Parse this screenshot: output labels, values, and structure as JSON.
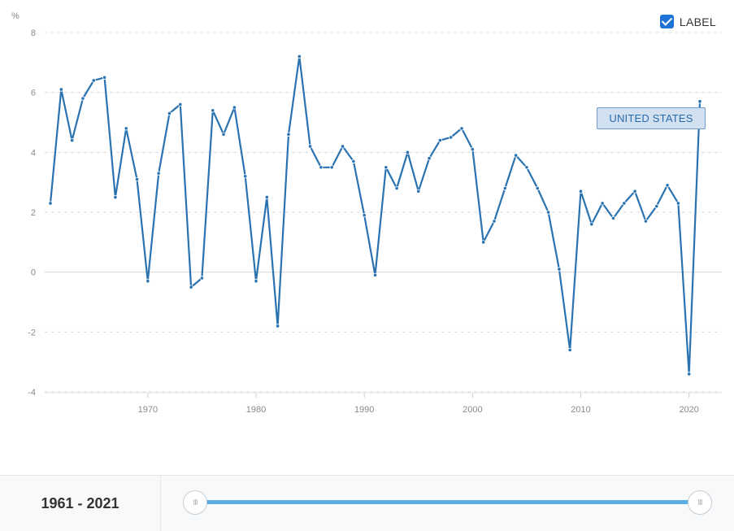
{
  "chart_data": {
    "type": "line",
    "ylabel": "%",
    "ylim": [
      -4,
      8
    ],
    "y_ticks": [
      8,
      6,
      4,
      2,
      0,
      -2,
      -4
    ],
    "x_ticks": [
      1970,
      1980,
      1990,
      2000,
      2010,
      2020
    ],
    "xlim": [
      1961,
      2021
    ],
    "grid": true,
    "legend": "top-right",
    "series": [
      {
        "name": "UNITED STATES",
        "color": "#2a72b0",
        "x": [
          1961,
          1962,
          1963,
          1964,
          1965,
          1966,
          1967,
          1968,
          1969,
          1970,
          1971,
          1972,
          1973,
          1974,
          1975,
          1976,
          1977,
          1978,
          1979,
          1980,
          1981,
          1982,
          1983,
          1984,
          1985,
          1986,
          1987,
          1988,
          1989,
          1990,
          1991,
          1992,
          1993,
          1994,
          1995,
          1996,
          1997,
          1998,
          1999,
          2000,
          2001,
          2002,
          2003,
          2004,
          2005,
          2006,
          2007,
          2008,
          2009,
          2010,
          2011,
          2012,
          2013,
          2014,
          2015,
          2016,
          2017,
          2018,
          2019,
          2020,
          2021
        ],
        "values": [
          2.3,
          6.1,
          4.4,
          5.8,
          6.4,
          6.5,
          2.5,
          4.8,
          3.1,
          -0.3,
          3.3,
          5.3,
          5.6,
          -0.5,
          -0.2,
          5.4,
          4.6,
          5.5,
          3.2,
          -0.3,
          2.5,
          -1.8,
          4.6,
          7.2,
          4.2,
          3.5,
          3.5,
          4.2,
          3.7,
          1.9,
          -0.1,
          3.5,
          2.8,
          4.0,
          2.7,
          3.8,
          4.4,
          4.5,
          4.8,
          4.1,
          1.0,
          1.7,
          2.8,
          3.9,
          3.5,
          2.8,
          2.0,
          0.1,
          -2.6,
          2.7,
          1.6,
          2.3,
          1.8,
          2.3,
          2.7,
          1.7,
          2.2,
          2.9,
          2.3,
          -3.4,
          5.7
        ]
      }
    ]
  },
  "legend_toggle": {
    "label": "LABEL",
    "checked": true
  },
  "series_tag": "UNITED STATES",
  "range": {
    "text": "1961 - 2021",
    "start": 1961,
    "end": 2021
  }
}
